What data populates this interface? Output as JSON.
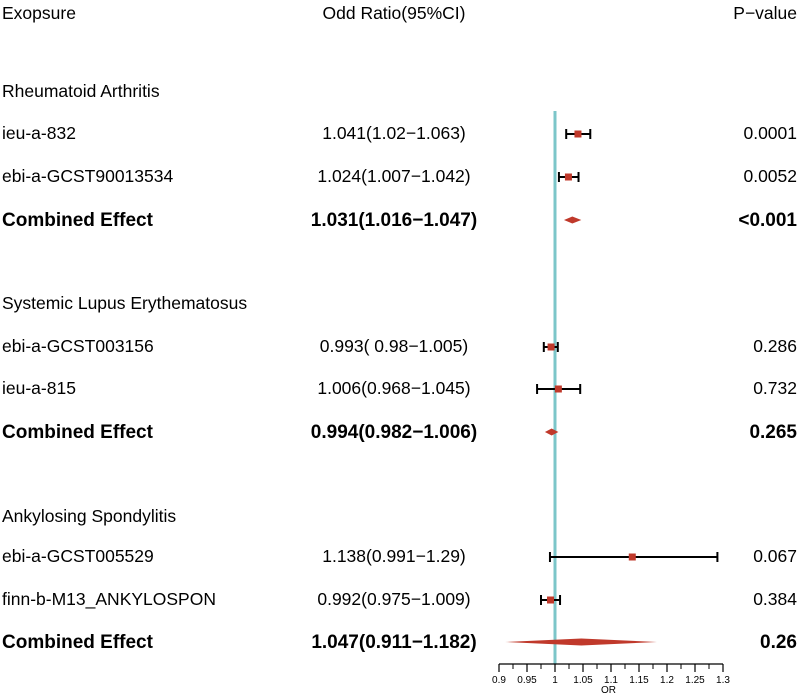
{
  "headers": {
    "exposure": "Exopsure",
    "or": "Odd Ratio(95%CI)",
    "pvalue": "P−value"
  },
  "colors": {
    "reference_line": "#7cc6c9",
    "marker": "#c0392b",
    "diamond": "#c0392b",
    "ci": "#000000"
  },
  "chart_data": {
    "type": "forest",
    "title": "",
    "xlabel": "OR",
    "xlim": [
      0.9,
      1.3
    ],
    "reference_value": 1,
    "ticks": [
      {
        "v": 0.9,
        "label": "0.9"
      },
      {
        "v": 0.95,
        "label": "0.95"
      },
      {
        "v": 1.0,
        "label": "1"
      },
      {
        "v": 1.05,
        "label": "1.05"
      },
      {
        "v": 1.1,
        "label": "1.1"
      },
      {
        "v": 1.15,
        "label": "1.15"
      },
      {
        "v": 1.2,
        "label": "1.2"
      },
      {
        "v": 1.25,
        "label": "1.25"
      },
      {
        "v": 1.3,
        "label": "1.3"
      }
    ],
    "rows": [
      {
        "type": "group",
        "label": "Rheumatoid Arthritis"
      },
      {
        "type": "study",
        "label": "ieu-a-832",
        "or_text": "1.041(1.02−1.063)",
        "p": "0.0001",
        "est": 1.041,
        "lo": 1.02,
        "hi": 1.063
      },
      {
        "type": "study",
        "label": "ebi-a-GCST90013534",
        "or_text": "1.024(1.007−1.042)",
        "p": "0.0052",
        "est": 1.024,
        "lo": 1.007,
        "hi": 1.042
      },
      {
        "type": "combined",
        "label": "Combined Effect",
        "or_text": "1.031(1.016−1.047)",
        "p": "<0.001",
        "est": 1.031,
        "lo": 1.016,
        "hi": 1.047
      },
      {
        "type": "group",
        "label": "Systemic Lupus Erythematosus"
      },
      {
        "type": "study",
        "label": "ebi-a-GCST003156",
        "or_text": "0.993( 0.98−1.005)",
        "p": "0.286",
        "est": 0.993,
        "lo": 0.98,
        "hi": 1.005
      },
      {
        "type": "study",
        "label": "ieu-a-815",
        "or_text": "1.006(0.968−1.045)",
        "p": "0.732",
        "est": 1.006,
        "lo": 0.968,
        "hi": 1.045
      },
      {
        "type": "combined",
        "label": "Combined Effect",
        "or_text": "0.994(0.982−1.006)",
        "p": "0.265",
        "est": 0.994,
        "lo": 0.982,
        "hi": 1.006
      },
      {
        "type": "group",
        "label": "Ankylosing Spondylitis"
      },
      {
        "type": "study",
        "label": "ebi-a-GCST005529",
        "or_text": "1.138(0.991−1.29)",
        "p": "0.067",
        "est": 1.138,
        "lo": 0.991,
        "hi": 1.29
      },
      {
        "type": "study",
        "label": "finn-b-M13_ANKYLOSPON",
        "or_text": "0.992(0.975−1.009)",
        "p": "0.384",
        "est": 0.992,
        "lo": 0.975,
        "hi": 1.009
      },
      {
        "type": "combined",
        "label": "Combined Effect",
        "or_text": "1.047(0.911−1.182)",
        "p": "0.26",
        "est": 1.047,
        "lo": 0.911,
        "hi": 1.182
      }
    ]
  }
}
